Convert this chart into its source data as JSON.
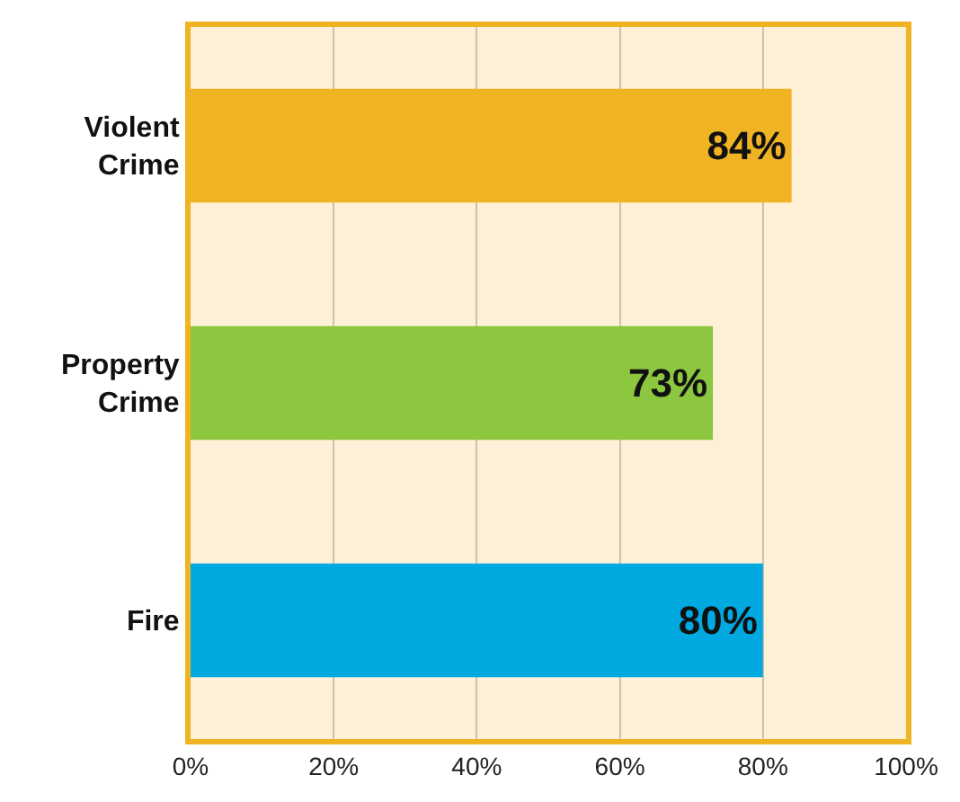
{
  "chart_data": {
    "type": "bar",
    "orientation": "horizontal",
    "categories": [
      "Violent Crime",
      "Property Crime",
      "Fire"
    ],
    "values": [
      84,
      73,
      80
    ],
    "colors": [
      "#f0b323",
      "#8dc63f",
      "#00a9e0"
    ],
    "value_labels": [
      "84%",
      "73%",
      "80%"
    ],
    "xlim": [
      0,
      100
    ],
    "xticks": [
      {
        "value": 0,
        "label": "0%"
      },
      {
        "value": 20,
        "label": "20%"
      },
      {
        "value": 40,
        "label": "40%"
      },
      {
        "value": 60,
        "label": "60%"
      },
      {
        "value": 80,
        "label": "80%"
      },
      {
        "value": 100,
        "label": "100%"
      }
    ],
    "grid": "x",
    "legend": false
  }
}
